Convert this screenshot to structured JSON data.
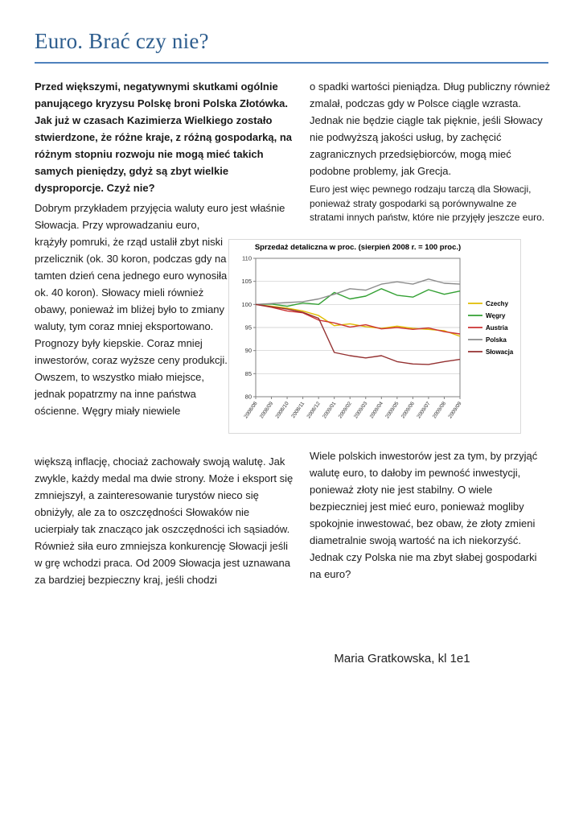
{
  "page": {
    "title": "Euro. Brać czy nie?"
  },
  "article": {
    "left_lead_bold": "Przed większymi, negatywnymi skutkami ogólnie panującego kryzysu Polskę broni Polska Złotówka. Jak już w czasach Kazimierza Wielkiego zostało stwierdzone, że różne kraje, z różną gospodarką, na różnym stopniu rozwoju nie mogą mieć takich samych pieniędzy, gdyż są zbyt wielkie dysproporcje. Czyż nie?",
    "left_para_wide": "Dobrym przykładem przyjęcia waluty euro jest właśnie Słowacja. Przy wprowadzaniu euro,",
    "left_para_narrow": "krążyły pomruki, że rząd ustalił zbyt niski przelicznik (ok. 30 koron, podczas gdy na tamten dzień cena jednego euro wynosiła ok. 40 koron). Słowacy mieli również obawy, ponieważ im bliżej było to zmiany waluty, tym coraz mniej eksportowano. Prognozy były kiepskie. Coraz mniej inwestorów, coraz wyższe ceny produkcji. Owszem, to wszystko miało miejsce, jednak popatrzmy na inne państwa ościenne. Węgry miały niewiele",
    "left_para_bottom": "większą inflację, chociaż zachowały swoją walutę. Jak zwykle, każdy medal ma dwie strony. Może i eksport się zmniejszył, a zainteresowanie turystów nieco się obniżyły, ale za to oszczędności Słowaków nie ucierpiały tak znacząco jak oszczędności ich sąsiadów. Również siła euro zmniejsza konkurencję Słowacji jeśli w grę wchodzi praca. Od 2009 Słowacja jest uznawana za bardziej bezpieczny kraj, jeśli chodzi",
    "right_para_top": "o spadki wartości pieniądza. Dług publiczny również zmalał, podczas gdy w Polsce ciągle wzrasta. Jednak nie będzie ciągle tak pięknie, jeśli Słowacy nie podwyższą jakości usług, by zachęcić zagranicznych przedsiębiorców, mogą mieć podobne problemy, jak Grecja.",
    "right_para_small": "Euro jest więc pewnego rodzaju tarczą dla Słowacji, ponieważ straty gospodarki są porównywalne ze stratami innych państw, które nie przyjęły jeszcze euro.",
    "right_para_bottom": "Wiele polskich inwestorów jest za tym, by przyjąć walutę euro, to dałoby im pewność inwestycji, ponieważ złoty nie jest stabilny. O wiele bezpieczniej jest mieć euro, ponieważ mogliby spokojnie inwestować, bez obaw, że złoty zmieni diametralnie swoją wartość na ich niekorzyść. Jednak czy Polska nie ma zbyt słabej gospodarki na euro?",
    "author": "Maria Gratkowska, kl 1e1"
  },
  "colors": {
    "title_text": "#2d5d8e",
    "title_rule": "#4f81bd",
    "body_text": "#1a1a1a",
    "chart_frame": "#d9d9d9",
    "plot_border": "#808080",
    "gridline": "#c9c9c9"
  },
  "chart_data": {
    "type": "line",
    "title": "Sprzedaż detaliczna w proc. (sierpień 2008 r. = 100 proc.)",
    "x": [
      "2008/08",
      "2008/09",
      "2008/10",
      "2008/11",
      "2008/12",
      "2009/01",
      "2009/02",
      "2009/03",
      "2009/04",
      "2009/05",
      "2009/06",
      "2009/07",
      "2009/08",
      "2009/09"
    ],
    "ylim": [
      80,
      110
    ],
    "yticks": [
      80,
      85,
      90,
      95,
      100,
      105,
      110
    ],
    "grid": true,
    "legend_position": "right",
    "series": [
      {
        "name": "Czechy",
        "color": "#e0bc00",
        "values": [
          100,
          99.6,
          99.2,
          98.6,
          97.6,
          95.4,
          95.8,
          95.2,
          94.8,
          95.3,
          94.8,
          94.6,
          94.3,
          93.1
        ]
      },
      {
        "name": "Węgry",
        "color": "#33a033",
        "values": [
          100,
          100.1,
          99.6,
          100.3,
          100.0,
          102.6,
          101.2,
          101.8,
          103.4,
          102.0,
          101.6,
          103.2,
          102.2,
          102.9
        ]
      },
      {
        "name": "Austria",
        "color": "#cc3333",
        "values": [
          100,
          99.4,
          98.6,
          98.2,
          96.6,
          96.0,
          95.1,
          95.6,
          94.7,
          95.0,
          94.6,
          94.9,
          94.1,
          93.6
        ]
      },
      {
        "name": "Polska",
        "color": "#8c8c8c",
        "values": [
          100,
          100.2,
          100.4,
          100.6,
          101.2,
          102.2,
          103.4,
          103.1,
          104.4,
          104.9,
          104.4,
          105.5,
          104.6,
          104.4
        ]
      },
      {
        "name": "Słowacja",
        "color": "#943030",
        "values": [
          100,
          99.5,
          99.0,
          98.3,
          97.0,
          89.6,
          88.9,
          88.4,
          88.9,
          87.6,
          87.1,
          87.0,
          87.6,
          88.1
        ]
      }
    ]
  }
}
